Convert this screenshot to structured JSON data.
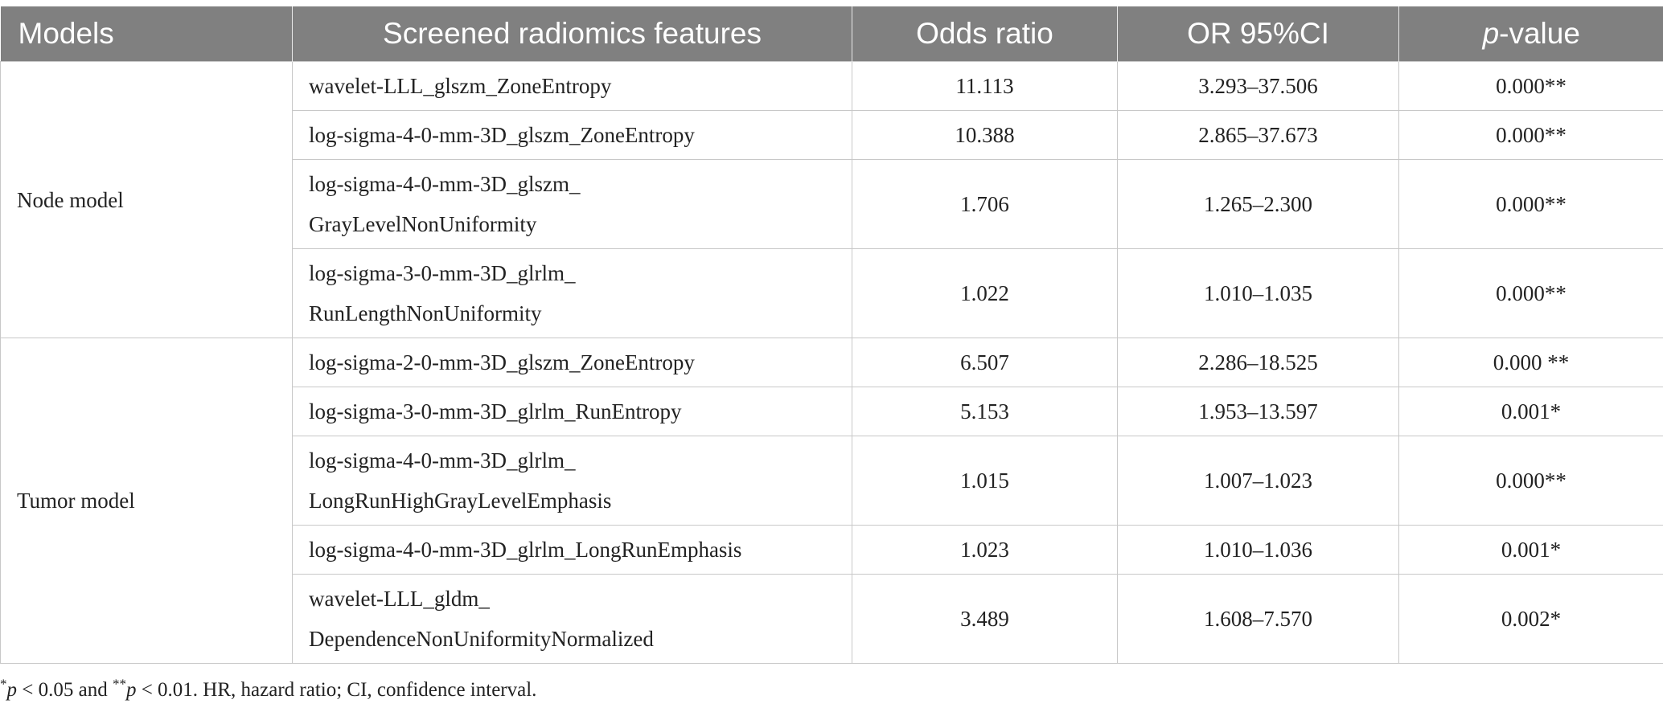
{
  "table": {
    "headers": {
      "models": "Models",
      "features": "Screened radiomics features",
      "odds_ratio": "Odds ratio",
      "ci": "OR 95%CI",
      "p_italic": "p",
      "p_rest": "-value"
    },
    "groups": [
      {
        "model": "Node model",
        "rows": [
          {
            "feature_lines": [
              "wavelet-LLL_glszm_ZoneEntropy"
            ],
            "odds_ratio": "11.113",
            "ci": "3.293–37.506",
            "p_value": "0.000**"
          },
          {
            "feature_lines": [
              "log-sigma-4-0-mm-3D_glszm_ZoneEntropy"
            ],
            "odds_ratio": "10.388",
            "ci": "2.865–37.673",
            "p_value": "0.000**"
          },
          {
            "feature_lines": [
              "log-sigma-4-0-mm-3D_glszm_",
              "GrayLevelNonUniformity"
            ],
            "odds_ratio": "1.706",
            "ci": "1.265–2.300",
            "p_value": "0.000**"
          },
          {
            "feature_lines": [
              "log-sigma-3-0-mm-3D_glrlm_",
              "RunLengthNonUniformity"
            ],
            "odds_ratio": "1.022",
            "ci": "1.010–1.035",
            "p_value": "0.000**"
          }
        ]
      },
      {
        "model": "Tumor model",
        "rows": [
          {
            "feature_lines": [
              "log-sigma-2-0-mm-3D_glszm_ZoneEntropy"
            ],
            "odds_ratio": "6.507",
            "ci": "2.286–18.525",
            "p_value": "0.000 **"
          },
          {
            "feature_lines": [
              "log-sigma-3-0-mm-3D_glrlm_RunEntropy"
            ],
            "odds_ratio": "5.153",
            "ci": "1.953–13.597",
            "p_value": "0.001*"
          },
          {
            "feature_lines": [
              "log-sigma-4-0-mm-3D_glrlm_",
              "LongRunHighGrayLevelEmphasis"
            ],
            "odds_ratio": "1.015",
            "ci": "1.007–1.023",
            "p_value": "0.000**"
          },
          {
            "feature_lines": [
              "log-sigma-4-0-mm-3D_glrlm_LongRunEmphasis"
            ],
            "odds_ratio": "1.023",
            "ci": "1.010–1.036",
            "p_value": "0.001*"
          },
          {
            "feature_lines": [
              "wavelet-LLL_gldm_",
              "DependenceNonUniformityNormalized"
            ],
            "odds_ratio": "3.489",
            "ci": "1.608–7.570",
            "p_value": "0.002*"
          }
        ]
      }
    ]
  },
  "footnote": {
    "star1": "*",
    "p1": "p",
    "t1": " < 0.05 and ",
    "star2": "**",
    "p2": "p",
    "t2": " < 0.01. HR, hazard ratio; CI, confidence interval."
  }
}
